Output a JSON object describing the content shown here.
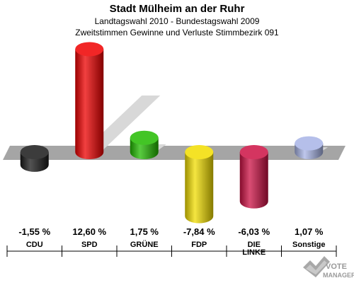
{
  "header": {
    "title": "Stadt Mülheim an der Ruhr",
    "subtitle1": "Landtagswahl 2010 - Bundestagswahl 2009",
    "subtitle2": "Zweitstimmen Gewinne und Verluste Stimmbezirk 091"
  },
  "chart_data": {
    "type": "bar",
    "categories": [
      [
        "CDU"
      ],
      [
        "SPD"
      ],
      [
        "GRÜNE"
      ],
      [
        "FDP"
      ],
      [
        "DIE",
        "LINKE"
      ],
      [
        "Sonstige"
      ]
    ],
    "values": [
      -1.55,
      12.6,
      1.75,
      -7.84,
      -6.03,
      1.07
    ],
    "value_labels": [
      "-1,55 %",
      "12,60 %",
      "1,75 %",
      "-7,84 %",
      "-6,03 %",
      "1,07 %"
    ],
    "colors": [
      "#1a1a1a",
      "#ee0000",
      "#22bb00",
      "#f2dd00",
      "#cc1144",
      "#a8b4e6"
    ],
    "ylim": [
      -8,
      13
    ],
    "grid": false,
    "legend": "none"
  },
  "watermark": {
    "line1": "VOTE",
    "line2": "MANAGER"
  }
}
